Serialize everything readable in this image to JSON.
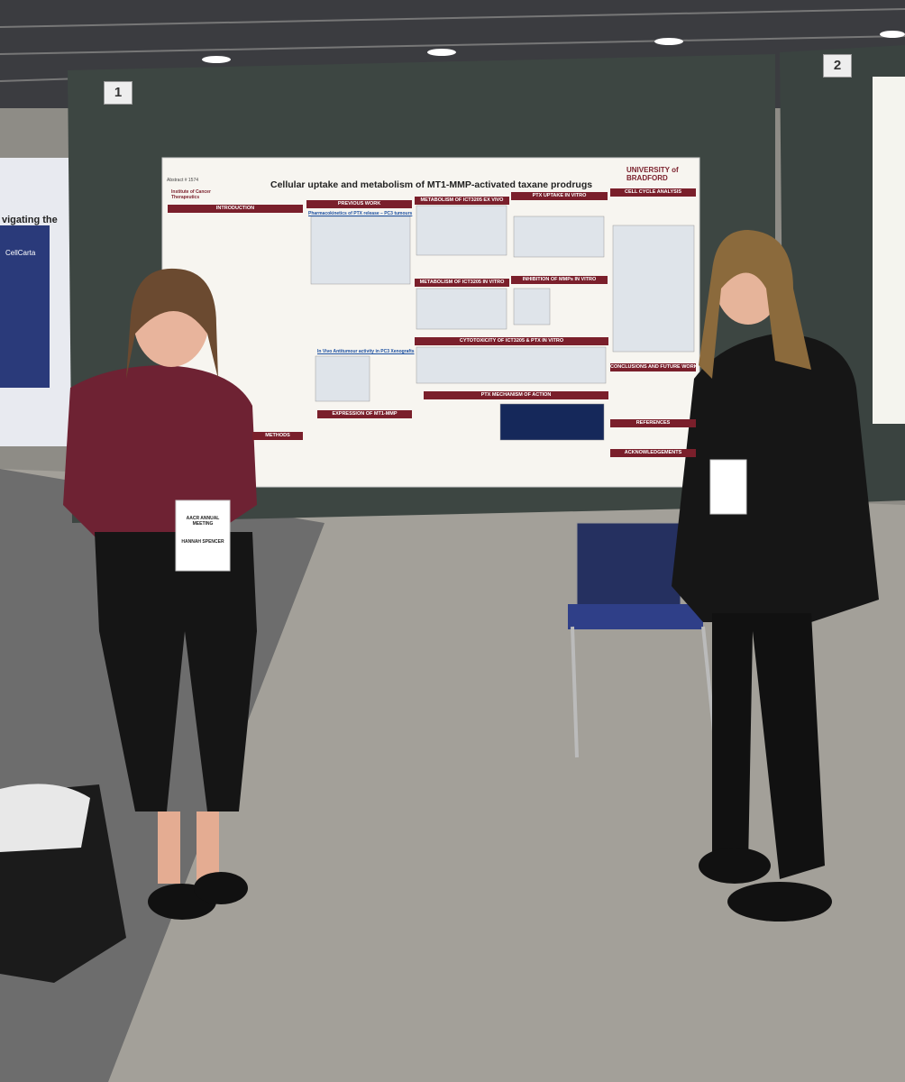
{
  "booth_numbers": [
    "1",
    "2"
  ],
  "side_booth": {
    "text": "vigating the",
    "brand": "CellCarta"
  },
  "poster": {
    "abstract": "Abstract # 1574",
    "title": "Cellular uptake and metabolism of MT1-MMP-activated taxane prodrugs",
    "logo_left": "Institute of Cancer Therapeutics",
    "logo_right": "UNIVERSITY of BRADFORD",
    "sections": [
      "INTRODUCTION",
      "PREVIOUS WORK",
      "METABOLISM OF ICT3205 EX VIVO",
      "PTX UPTAKE IN VITRO",
      "CELL CYCLE ANALYSIS",
      "METABOLISM OF ICT3205 IN VITRO",
      "INHIBITION OF MMPs IN VITRO",
      "CYTOTOXICITY OF ICT3205 & PTX IN VITRO",
      "EXPRESSION OF MT1-MMP",
      "PTX MECHANISM OF ACTION",
      "CONCLUSIONS AND FUTURE WORK",
      "REFERENCES",
      "ACKNOWLEDGEMENTS",
      "METHODS"
    ],
    "subheadings": [
      "Pharmacokinetics of PTX release – PC3 tumours",
      "In Vivo Antitumour activity in PC3 Xenografts"
    ]
  },
  "badges": {
    "meeting": "AACR ANNUAL MEETING",
    "name": "HANNAH SPENCER"
  }
}
